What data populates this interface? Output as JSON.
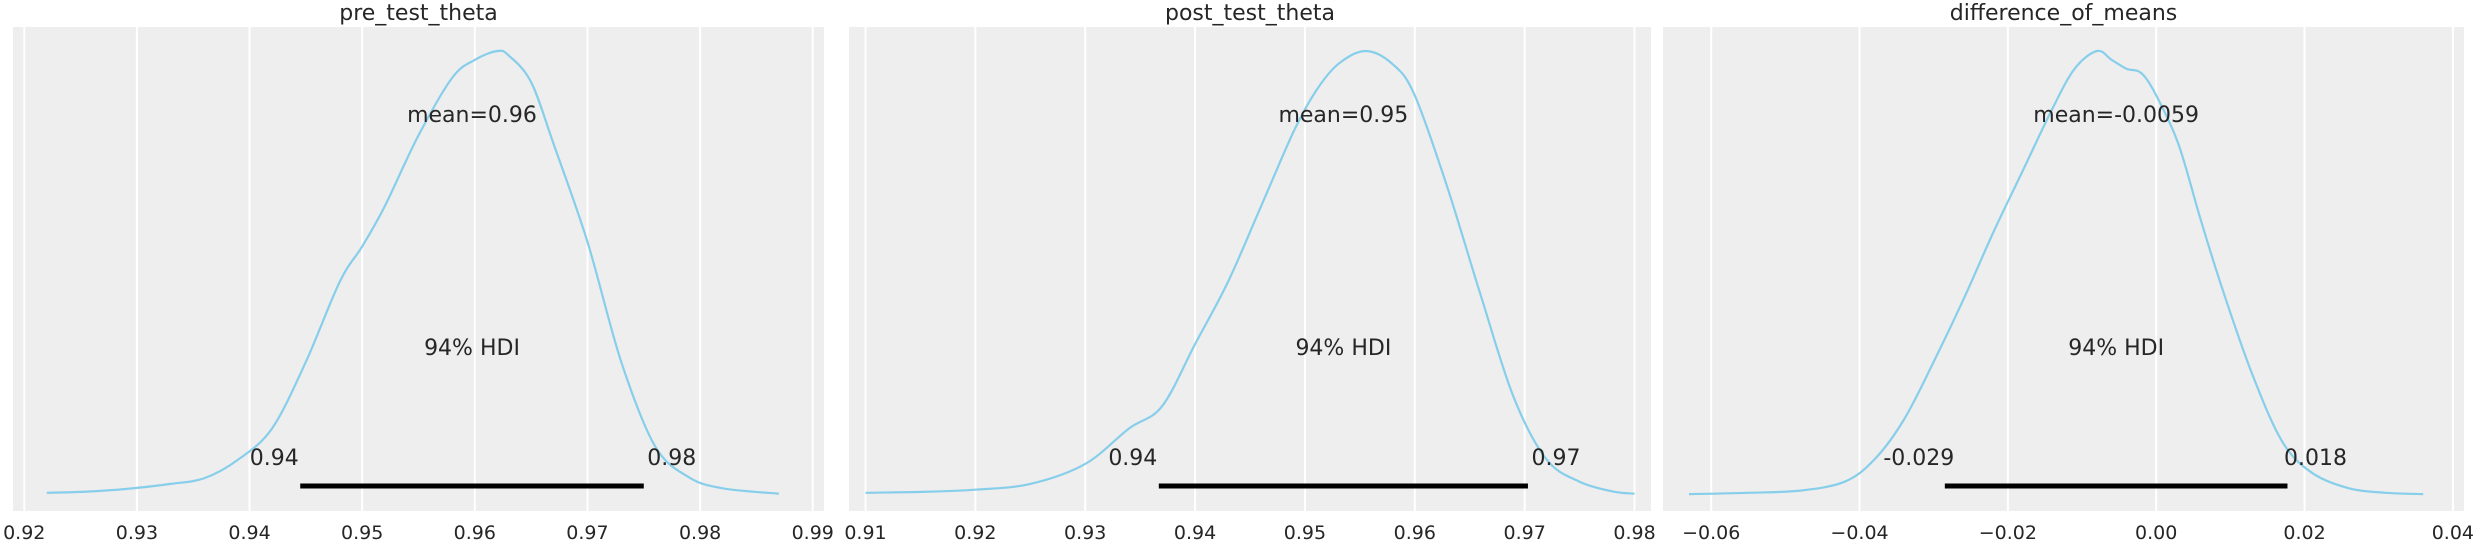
{
  "chart_data": [
    {
      "type": "area",
      "title": "pre_test_theta",
      "xlim": [
        0.919,
        0.991
      ],
      "xticks": [
        0.92,
        0.93,
        0.94,
        0.95,
        0.96,
        0.97,
        0.98,
        0.99
      ],
      "xtick_labels": [
        "0.92",
        "0.93",
        "0.94",
        "0.95",
        "0.96",
        "0.97",
        "0.98",
        "0.99"
      ],
      "grid": true,
      "mean_label": "mean=0.96",
      "hdi_label": "94% HDI",
      "hdi": [
        0.9445,
        0.975
      ],
      "hdi_low_label": "0.94",
      "hdi_high_label": "0.98",
      "x": [
        0.922,
        0.926,
        0.93,
        0.933,
        0.936,
        0.939,
        0.942,
        0.945,
        0.948,
        0.95,
        0.952,
        0.955,
        0.958,
        0.96,
        0.962,
        0.963,
        0.965,
        0.967,
        0.97,
        0.973,
        0.976,
        0.979,
        0.982,
        0.987
      ],
      "density": [
        0.005,
        0.008,
        0.016,
        0.025,
        0.038,
        0.08,
        0.15,
        0.3,
        0.48,
        0.56,
        0.65,
        0.81,
        0.94,
        0.98,
        1.0,
        0.99,
        0.93,
        0.79,
        0.57,
        0.3,
        0.11,
        0.04,
        0.015,
        0.003
      ]
    },
    {
      "type": "area",
      "title": "post_test_theta",
      "xlim": [
        0.9085,
        0.9815
      ],
      "xticks": [
        0.91,
        0.92,
        0.93,
        0.94,
        0.95,
        0.96,
        0.97,
        0.98
      ],
      "xtick_labels": [
        "0.91",
        "0.92",
        "0.93",
        "0.94",
        "0.95",
        "0.96",
        "0.97",
        "0.98"
      ],
      "grid": true,
      "mean_label": "mean=0.95",
      "hdi_label": "94% HDI",
      "hdi": [
        0.9367,
        0.9703
      ],
      "hdi_low_label": "0.94",
      "hdi_high_label": "0.97",
      "x": [
        0.91,
        0.915,
        0.92,
        0.925,
        0.93,
        0.934,
        0.937,
        0.94,
        0.943,
        0.946,
        0.949,
        0.951,
        0.953,
        0.9555,
        0.958,
        0.96,
        0.963,
        0.966,
        0.969,
        0.972,
        0.975,
        0.978,
        0.98
      ],
      "density": [
        0.005,
        0.007,
        0.012,
        0.025,
        0.07,
        0.15,
        0.2,
        0.34,
        0.48,
        0.65,
        0.82,
        0.91,
        0.97,
        1.0,
        0.97,
        0.9,
        0.69,
        0.45,
        0.22,
        0.08,
        0.03,
        0.008,
        0.003
      ]
    },
    {
      "type": "area",
      "title": "difference_of_means",
      "xlim": [
        -0.0665,
        0.0415
      ],
      "xticks": [
        -0.06,
        -0.04,
        -0.02,
        0.0,
        0.02,
        0.04
      ],
      "xtick_labels": [
        "−0.06",
        "−0.04",
        "−0.02",
        "0.00",
        "0.02",
        "0.04"
      ],
      "grid": true,
      "mean_label": "mean=-0.0059",
      "hdi_label": "94% HDI",
      "hdi": [
        -0.0285,
        0.0177
      ],
      "hdi_low_label": "-0.029",
      "hdi_high_label": "0.018",
      "x": [
        -0.063,
        -0.055,
        -0.048,
        -0.042,
        -0.038,
        -0.034,
        -0.03,
        -0.026,
        -0.022,
        -0.018,
        -0.014,
        -0.011,
        -0.008,
        -0.006,
        -0.004,
        -0.002,
        0.0,
        0.003,
        0.006,
        0.009,
        0.013,
        0.017,
        0.021,
        0.026,
        0.031,
        0.036
      ],
      "density": [
        0.002,
        0.005,
        0.01,
        0.03,
        0.08,
        0.17,
        0.3,
        0.44,
        0.59,
        0.73,
        0.87,
        0.96,
        1.0,
        0.98,
        0.96,
        0.95,
        0.9,
        0.79,
        0.62,
        0.46,
        0.27,
        0.12,
        0.05,
        0.015,
        0.005,
        0.002
      ]
    }
  ]
}
